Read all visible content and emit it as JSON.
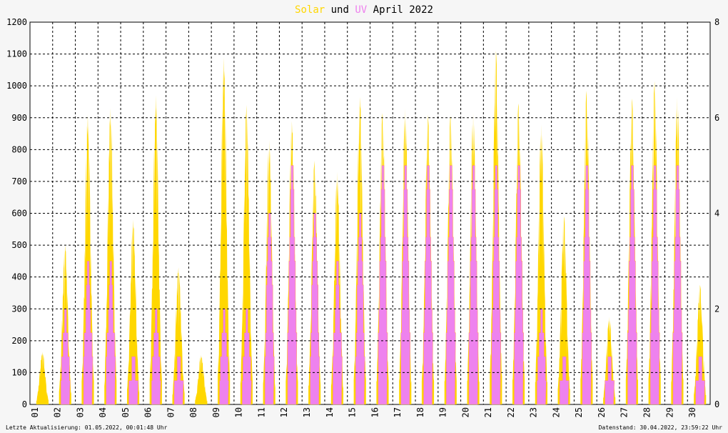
{
  "chart_data": {
    "type": "area",
    "title": {
      "solar": "Solar",
      "und": "und",
      "uv": "UV",
      "period": "April 2022"
    },
    "colors": {
      "solar": "#ffd700",
      "uv": "#ee82ee",
      "uv_line": "#ff9966",
      "grid": "#000000",
      "background": "#ffffff",
      "title_text": "#000000"
    },
    "y_left": {
      "ticks": [
        0,
        100,
        200,
        300,
        400,
        500,
        600,
        700,
        800,
        900,
        1000,
        1100,
        1200
      ],
      "range": [
        0,
        1200
      ]
    },
    "y_right": {
      "ticks": [
        0,
        2,
        4,
        6,
        8
      ],
      "range": [
        0,
        8
      ]
    },
    "x": {
      "categories": [
        "01",
        "02",
        "03",
        "04",
        "05",
        "06",
        "07",
        "08",
        "09",
        "10",
        "11",
        "12",
        "13",
        "14",
        "15",
        "16",
        "17",
        "18",
        "19",
        "20",
        "21",
        "22",
        "23",
        "24",
        "25",
        "26",
        "27",
        "28",
        "29",
        "30"
      ]
    },
    "series": [
      {
        "key": "solar",
        "name": "Solar",
        "axis": "left",
        "daily_max": [
          165,
          500,
          910,
          930,
          580,
          970,
          430,
          155,
          1090,
          940,
          830,
          890,
          765,
          730,
          965,
          915,
          930,
          910,
          905,
          915,
          1110,
          945,
          880,
          590,
          985,
          275,
          960,
          1015,
          965,
          375
        ]
      },
      {
        "key": "uv",
        "name": "UV",
        "axis": "right",
        "daily_max": [
          0,
          2,
          3,
          3,
          1,
          2,
          1,
          0,
          2,
          2,
          4,
          5,
          4,
          3,
          4,
          5,
          5,
          5,
          5,
          5,
          5,
          5,
          2,
          1,
          5,
          1,
          5,
          5,
          5,
          1
        ]
      }
    ],
    "grid": true
  },
  "footer": {
    "left": "Letzte Aktualisierung: 01.05.2022, 00:01:48 Uhr",
    "right": "Datenstand: 30.04.2022, 23:59:22 Uhr"
  }
}
